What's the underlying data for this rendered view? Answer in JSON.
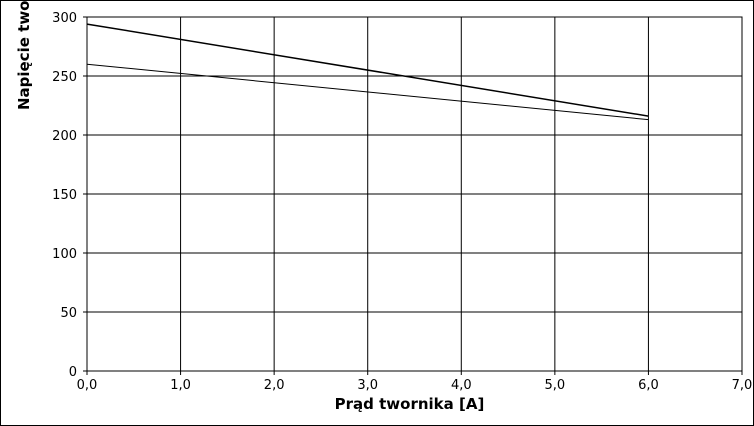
{
  "chart_data": {
    "type": "line",
    "title": "",
    "xlabel": "Prąd twornika [A]",
    "ylabel": "Napięcie twornika",
    "xlim": [
      0,
      7
    ],
    "ylim": [
      0,
      300
    ],
    "x_ticks": [
      0,
      1,
      2,
      3,
      4,
      5,
      6,
      7
    ],
    "y_ticks": [
      0,
      50,
      100,
      150,
      200,
      250,
      300
    ],
    "x_tick_labels": [
      "0,0",
      "1,0",
      "2,0",
      "3,0",
      "4,0",
      "5,0",
      "6,0",
      "7,0"
    ],
    "y_tick_labels": [
      "0",
      "50",
      "100",
      "150",
      "200",
      "250",
      "300"
    ],
    "grid": true,
    "legend": "none",
    "series": [
      {
        "x": [
          0,
          6
        ],
        "y": [
          294,
          216
        ],
        "color": "#000000",
        "width": 1.5
      },
      {
        "x": [
          0,
          6
        ],
        "y": [
          260,
          213
        ],
        "color": "#000000",
        "width": 1.0
      }
    ]
  }
}
